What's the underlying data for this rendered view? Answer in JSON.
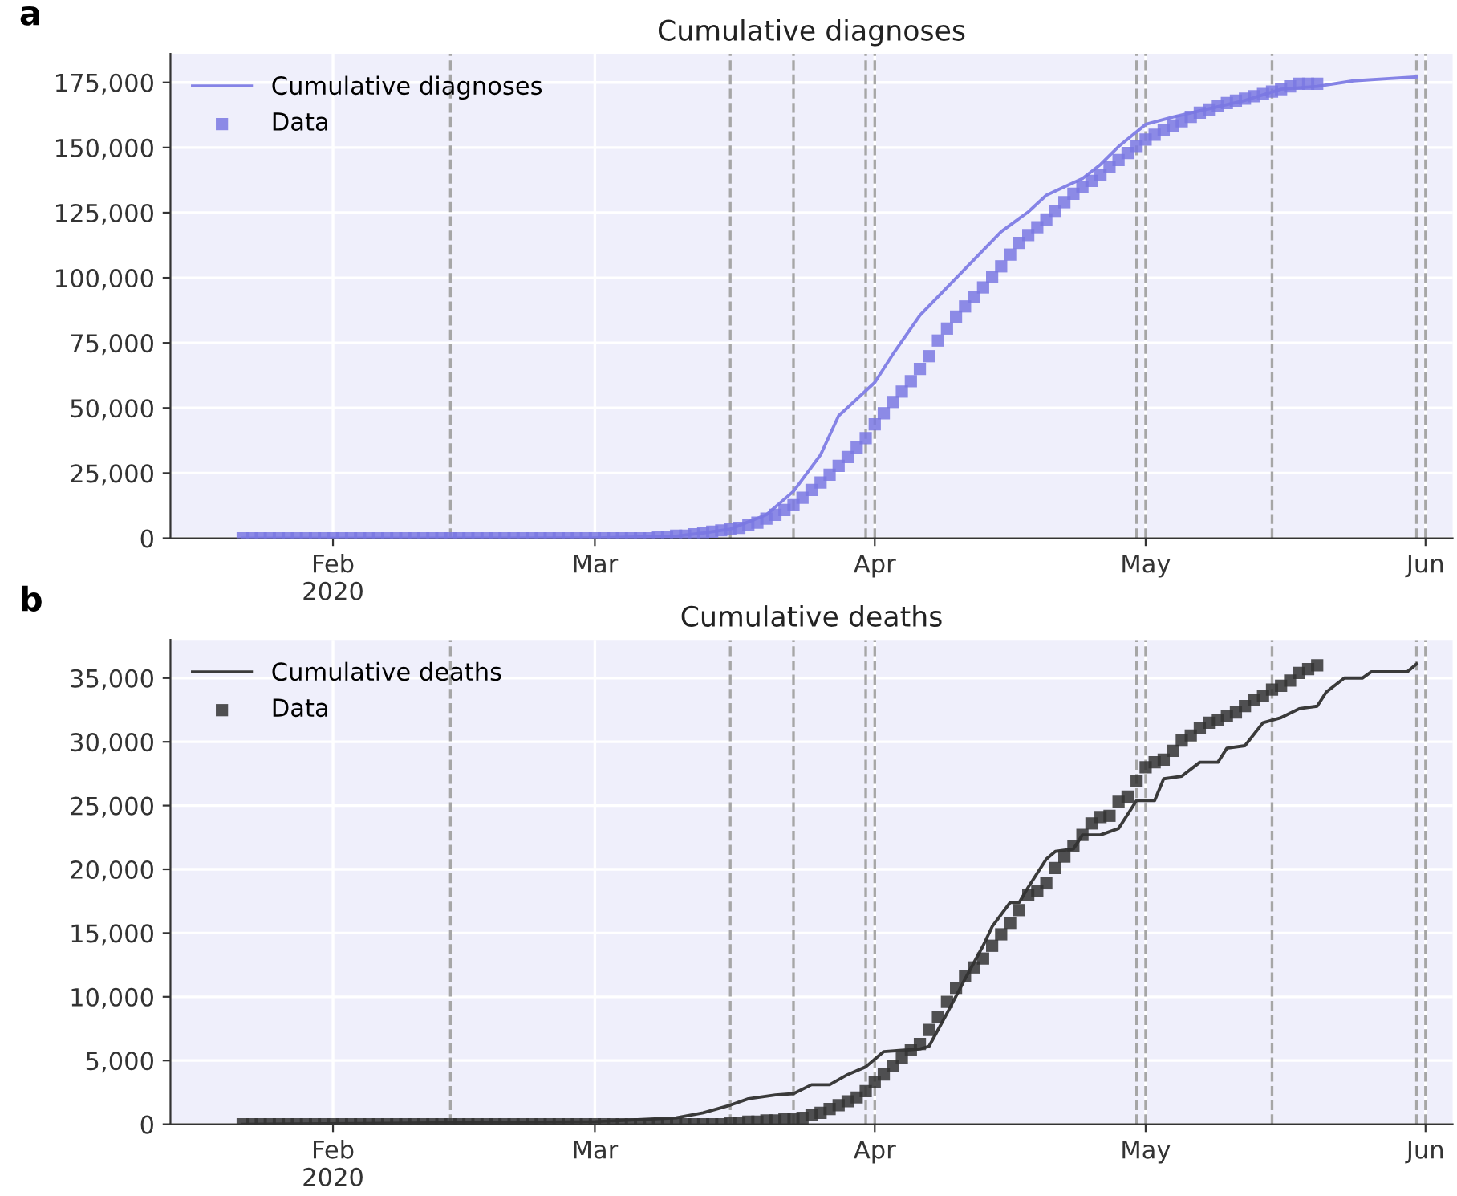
{
  "chart_data": [
    {
      "type": "line",
      "title": "Cumulative diagnoses",
      "annotations": [
        "a"
      ],
      "x": [
        "2020-01-22",
        "2020-01-23",
        "2020-01-24",
        "2020-01-25",
        "2020-01-26",
        "2020-01-27",
        "2020-01-28",
        "2020-01-29",
        "2020-01-30",
        "2020-01-31",
        "2020-02-01",
        "2020-02-02",
        "2020-02-03",
        "2020-02-04",
        "2020-02-05",
        "2020-02-06",
        "2020-02-07",
        "2020-02-08",
        "2020-02-09",
        "2020-02-10",
        "2020-02-11",
        "2020-02-12",
        "2020-02-13",
        "2020-02-14",
        "2020-02-15",
        "2020-02-16",
        "2020-02-17",
        "2020-02-18",
        "2020-02-19",
        "2020-02-20",
        "2020-02-21",
        "2020-02-22",
        "2020-02-23",
        "2020-02-24",
        "2020-02-25",
        "2020-02-26",
        "2020-02-27",
        "2020-02-28",
        "2020-02-29",
        "2020-03-01",
        "2020-03-02",
        "2020-03-03",
        "2020-03-04",
        "2020-03-05",
        "2020-03-06",
        "2020-03-07",
        "2020-03-08",
        "2020-03-09",
        "2020-03-10",
        "2020-03-11",
        "2020-03-12",
        "2020-03-13",
        "2020-03-14",
        "2020-03-15",
        "2020-03-16",
        "2020-03-17",
        "2020-03-18",
        "2020-03-19",
        "2020-03-20",
        "2020-03-21",
        "2020-03-22",
        "2020-03-23",
        "2020-03-24",
        "2020-03-25",
        "2020-03-26",
        "2020-03-27",
        "2020-03-28",
        "2020-03-29",
        "2020-03-30",
        "2020-03-31",
        "2020-04-01",
        "2020-04-02",
        "2020-04-03",
        "2020-04-04",
        "2020-04-05",
        "2020-04-06",
        "2020-04-07",
        "2020-04-08",
        "2020-04-09",
        "2020-04-10",
        "2020-04-11",
        "2020-04-12",
        "2020-04-13",
        "2020-04-14",
        "2020-04-15",
        "2020-04-16",
        "2020-04-17",
        "2020-04-18",
        "2020-04-19",
        "2020-04-20",
        "2020-04-21",
        "2020-04-22",
        "2020-04-23",
        "2020-04-24",
        "2020-04-25",
        "2020-04-26",
        "2020-04-27",
        "2020-04-28",
        "2020-04-29",
        "2020-04-30",
        "2020-05-01",
        "2020-05-02",
        "2020-05-03",
        "2020-05-04",
        "2020-05-05",
        "2020-05-06",
        "2020-05-07",
        "2020-05-08",
        "2020-05-09",
        "2020-05-10",
        "2020-05-11",
        "2020-05-12",
        "2020-05-13",
        "2020-05-14",
        "2020-05-15",
        "2020-05-16",
        "2020-05-17",
        "2020-05-18",
        "2020-05-19",
        "2020-05-20"
      ],
      "series": [
        {
          "name": "Cumulative diagnoses",
          "color": "#8583e6",
          "x": [
            "2020-01-22",
            "2020-03-01",
            "2020-03-10",
            "2020-03-13",
            "2020-03-16",
            "2020-03-20",
            "2020-03-23",
            "2020-03-26",
            "2020-03-28",
            "2020-04-01",
            "2020-04-03",
            "2020-04-06",
            "2020-04-09",
            "2020-04-12",
            "2020-04-15",
            "2020-04-18",
            "2020-04-20",
            "2020-04-22",
            "2020-04-24",
            "2020-04-26",
            "2020-04-28",
            "2020-05-01",
            "2020-05-04",
            "2020-05-08",
            "2020-05-12",
            "2020-05-16",
            "2020-05-20",
            "2020-05-24",
            "2020-05-28",
            "2020-05-31"
          ],
          "values": [
            0,
            100,
            800,
            2000,
            3500,
            9000,
            18000,
            32000,
            47000,
            59800,
            70600,
            85600,
            96300,
            107000,
            117700,
            125300,
            131700,
            134900,
            138100,
            143500,
            150400,
            158900,
            161700,
            164900,
            168100,
            172400,
            173500,
            175600,
            176500,
            177100
          ]
        },
        {
          "name": "Data",
          "type": "scatter",
          "marker": "square",
          "color": "#7a78e2",
          "values": [
            0,
            0,
            0,
            0,
            0,
            0,
            0,
            0,
            0,
            0,
            0,
            0,
            0,
            0,
            0,
            0,
            0,
            0,
            0,
            0,
            0,
            0,
            0,
            0,
            0,
            0,
            0,
            0,
            0,
            0,
            0,
            0,
            0,
            0,
            0,
            0,
            0,
            0,
            0,
            0,
            0,
            0,
            0,
            0,
            0,
            0,
            500,
            500,
            1000,
            1000,
            1500,
            2000,
            2500,
            3000,
            3500,
            4000,
            5000,
            6000,
            7500,
            9000,
            10800,
            12700,
            15500,
            18500,
            21400,
            24400,
            27800,
            31200,
            34800,
            38400,
            43700,
            48000,
            52300,
            56300,
            60300,
            65000,
            69900,
            75900,
            80500,
            85100,
            89000,
            92700,
            96300,
            100400,
            104400,
            108900,
            113400,
            116400,
            119400,
            122400,
            125700,
            129000,
            132300,
            134800,
            137200,
            139600,
            142400,
            145200,
            147900,
            150600,
            153100,
            154900,
            156700,
            158500,
            160100,
            161800,
            163400,
            164600,
            165900,
            167100,
            168000,
            168800,
            169700,
            170600,
            171500,
            172400,
            173500,
            174500,
            174500,
            174500
          ]
        }
      ],
      "xlim": [
        "2020-01-14",
        "2020-06-04"
      ],
      "xticks": [
        {
          "value": "2020-02-01",
          "label": "Feb\n2020"
        },
        {
          "value": "2020-03-01",
          "label": "Mar"
        },
        {
          "value": "2020-04-01",
          "label": "Apr"
        },
        {
          "value": "2020-05-01",
          "label": "May"
        },
        {
          "value": "2020-06-01",
          "label": "Jun"
        }
      ],
      "ylim": [
        0,
        186000
      ],
      "yticks": [
        0,
        {
          "value": 25000,
          "label": "25,000"
        },
        {
          "value": 50000,
          "label": "50,000"
        },
        {
          "value": 75000,
          "label": "75,000"
        },
        {
          "value": 100000,
          "label": "100,000"
        },
        {
          "value": 125000,
          "label": "125,000"
        },
        {
          "value": 150000,
          "label": "150,000"
        },
        {
          "value": 175000,
          "label": "175,000"
        }
      ],
      "grid": true,
      "legend": "top left",
      "line_style": "solid",
      "ref_lines": [
        {
          "axis": "x",
          "value": "2020-02-14",
          "color": "#a6a6a6",
          "line_style": "dashed"
        },
        {
          "axis": "x",
          "value": "2020-03-16",
          "color": "#a6a6a6",
          "line_style": "dashed"
        },
        {
          "axis": "x",
          "value": "2020-03-23",
          "color": "#a6a6a6",
          "line_style": "dashed"
        },
        {
          "axis": "x",
          "value": "2020-03-31",
          "color": "#a6a6a6",
          "line_style": "dashed"
        },
        {
          "axis": "x",
          "value": "2020-04-01",
          "color": "#a6a6a6",
          "line_style": "dashed"
        },
        {
          "axis": "x",
          "value": "2020-04-30",
          "color": "#a6a6a6",
          "line_style": "dashed"
        },
        {
          "axis": "x",
          "value": "2020-05-01",
          "color": "#a6a6a6",
          "line_style": "dashed"
        },
        {
          "axis": "x",
          "value": "2020-05-15",
          "color": "#a6a6a6",
          "line_style": "dashed"
        },
        {
          "axis": "x",
          "value": "2020-05-31",
          "color": "#a6a6a6",
          "line_style": "dashed"
        },
        {
          "axis": "x",
          "value": "2020-06-01",
          "color": "#a6a6a6",
          "line_style": "dashed"
        }
      ]
    },
    {
      "type": "line",
      "title": "Cumulative deaths",
      "annotations": [
        "b"
      ],
      "x": [
        "2020-01-22",
        "2020-01-23",
        "2020-01-24",
        "2020-01-25",
        "2020-01-26",
        "2020-01-27",
        "2020-01-28",
        "2020-01-29",
        "2020-01-30",
        "2020-01-31",
        "2020-02-01",
        "2020-02-02",
        "2020-02-03",
        "2020-02-04",
        "2020-02-05",
        "2020-02-06",
        "2020-02-07",
        "2020-02-08",
        "2020-02-09",
        "2020-02-10",
        "2020-02-11",
        "2020-02-12",
        "2020-02-13",
        "2020-02-14",
        "2020-02-15",
        "2020-02-16",
        "2020-02-17",
        "2020-02-18",
        "2020-02-19",
        "2020-02-20",
        "2020-02-21",
        "2020-02-22",
        "2020-02-23",
        "2020-02-24",
        "2020-02-25",
        "2020-02-26",
        "2020-02-27",
        "2020-02-28",
        "2020-02-29",
        "2020-03-01",
        "2020-03-02",
        "2020-03-03",
        "2020-03-04",
        "2020-03-05",
        "2020-03-06",
        "2020-03-07",
        "2020-03-08",
        "2020-03-09",
        "2020-03-10",
        "2020-03-11",
        "2020-03-12",
        "2020-03-13",
        "2020-03-14",
        "2020-03-15",
        "2020-03-16",
        "2020-03-17",
        "2020-03-18",
        "2020-03-19",
        "2020-03-20",
        "2020-03-21",
        "2020-03-22",
        "2020-03-23",
        "2020-03-24",
        "2020-03-25",
        "2020-03-26",
        "2020-03-27",
        "2020-03-28",
        "2020-03-29",
        "2020-03-30",
        "2020-03-31",
        "2020-04-01",
        "2020-04-02",
        "2020-04-03",
        "2020-04-04",
        "2020-04-05",
        "2020-04-06",
        "2020-04-07",
        "2020-04-08",
        "2020-04-09",
        "2020-04-10",
        "2020-04-11",
        "2020-04-12",
        "2020-04-13",
        "2020-04-14",
        "2020-04-15",
        "2020-04-16",
        "2020-04-17",
        "2020-04-18",
        "2020-04-19",
        "2020-04-20",
        "2020-04-21",
        "2020-04-22",
        "2020-04-23",
        "2020-04-24",
        "2020-04-25",
        "2020-04-26",
        "2020-04-27",
        "2020-04-28",
        "2020-04-29",
        "2020-04-30",
        "2020-05-01",
        "2020-05-02",
        "2020-05-03",
        "2020-05-04",
        "2020-05-05",
        "2020-05-06",
        "2020-05-07",
        "2020-05-08",
        "2020-05-09",
        "2020-05-10",
        "2020-05-11",
        "2020-05-12",
        "2020-05-13",
        "2020-05-14",
        "2020-05-15",
        "2020-05-16",
        "2020-05-17",
        "2020-05-18",
        "2020-05-19",
        "2020-05-20"
      ],
      "series": [
        {
          "name": "Cumulative deaths",
          "color": "#3a3a3a",
          "x": [
            "2020-01-22",
            "2020-03-01",
            "2020-03-10",
            "2020-03-13",
            "2020-03-16",
            "2020-03-18",
            "2020-03-21",
            "2020-03-23",
            "2020-03-25",
            "2020-03-27",
            "2020-03-29",
            "2020-03-31",
            "2020-04-02",
            "2020-04-04",
            "2020-04-06",
            "2020-04-07",
            "2020-04-09",
            "2020-04-11",
            "2020-04-13",
            "2020-04-14",
            "2020-04-16",
            "2020-04-17",
            "2020-04-18",
            "2020-04-20",
            "2020-04-21",
            "2020-04-23",
            "2020-04-24",
            "2020-04-26",
            "2020-04-28",
            "2020-04-30",
            "2020-05-02",
            "2020-05-03",
            "2020-05-05",
            "2020-05-07",
            "2020-05-09",
            "2020-05-10",
            "2020-05-12",
            "2020-05-14",
            "2020-05-16",
            "2020-05-18",
            "2020-05-20",
            "2020-05-21",
            "2020-05-23",
            "2020-05-25",
            "2020-05-26",
            "2020-05-30",
            "2020-05-31"
          ],
          "values": [
            0,
            200,
            500,
            900,
            1500,
            2000,
            2300,
            2400,
            3100,
            3100,
            3900,
            4500,
            5700,
            5800,
            5900,
            6100,
            8700,
            11400,
            14000,
            15500,
            17400,
            17400,
            18600,
            20800,
            21400,
            21600,
            22700,
            22700,
            23200,
            25400,
            25400,
            27100,
            27300,
            28400,
            28400,
            29500,
            29700,
            31500,
            31900,
            32600,
            32800,
            33900,
            35000,
            35000,
            35500,
            35500,
            36100
          ]
        },
        {
          "name": "Data",
          "type": "scatter",
          "marker": "square",
          "color": "#333333",
          "values": [
            0,
            0,
            0,
            0,
            0,
            0,
            0,
            0,
            0,
            0,
            0,
            0,
            0,
            0,
            0,
            0,
            0,
            0,
            0,
            0,
            0,
            0,
            0,
            0,
            0,
            0,
            0,
            0,
            0,
            0,
            0,
            0,
            0,
            0,
            0,
            0,
            0,
            0,
            0,
            0,
            0,
            0,
            0,
            0,
            0,
            0,
            0,
            0,
            0,
            0,
            0,
            0,
            0,
            0,
            100,
            100,
            200,
            200,
            300,
            300,
            400,
            400,
            500,
            700,
            900,
            1200,
            1500,
            1800,
            2100,
            2600,
            3300,
            3900,
            4600,
            5200,
            5800,
            6300,
            7400,
            8400,
            9600,
            10700,
            11600,
            12300,
            13000,
            14000,
            14900,
            15800,
            16800,
            18000,
            18300,
            18900,
            20100,
            21000,
            21800,
            22700,
            23600,
            24100,
            24200,
            25300,
            25700,
            26900,
            28000,
            28400,
            28600,
            29300,
            30100,
            30500,
            31100,
            31500,
            31700,
            32000,
            32300,
            32800,
            33300,
            33600,
            34100,
            34400,
            34800,
            35400,
            35700,
            36000
          ]
        }
      ],
      "xlim": [
        "2020-01-14",
        "2020-06-04"
      ],
      "xticks": [
        {
          "value": "2020-02-01",
          "label": "Feb\n2020"
        },
        {
          "value": "2020-03-01",
          "label": "Mar"
        },
        {
          "value": "2020-04-01",
          "label": "Apr"
        },
        {
          "value": "2020-05-01",
          "label": "May"
        },
        {
          "value": "2020-06-01",
          "label": "Jun"
        }
      ],
      "ylim": [
        0,
        38000
      ],
      "yticks": [
        0,
        {
          "value": 5000,
          "label": "5,000"
        },
        {
          "value": 10000,
          "label": "10,000"
        },
        {
          "value": 15000,
          "label": "15,000"
        },
        {
          "value": 20000,
          "label": "20,000"
        },
        {
          "value": 25000,
          "label": "25,000"
        },
        {
          "value": 30000,
          "label": "30,000"
        },
        {
          "value": 35000,
          "label": "35,000"
        }
      ],
      "grid": true,
      "legend": "top left",
      "line_style": "solid",
      "ref_lines": [
        {
          "axis": "x",
          "value": "2020-02-14",
          "color": "#a6a6a6",
          "line_style": "dashed"
        },
        {
          "axis": "x",
          "value": "2020-03-16",
          "color": "#a6a6a6",
          "line_style": "dashed"
        },
        {
          "axis": "x",
          "value": "2020-03-23",
          "color": "#a6a6a6",
          "line_style": "dashed"
        },
        {
          "axis": "x",
          "value": "2020-03-31",
          "color": "#a6a6a6",
          "line_style": "dashed"
        },
        {
          "axis": "x",
          "value": "2020-04-01",
          "color": "#a6a6a6",
          "line_style": "dashed"
        },
        {
          "axis": "x",
          "value": "2020-04-30",
          "color": "#a6a6a6",
          "line_style": "dashed"
        },
        {
          "axis": "x",
          "value": "2020-05-01",
          "color": "#a6a6a6",
          "line_style": "dashed"
        },
        {
          "axis": "x",
          "value": "2020-05-15",
          "color": "#a6a6a6",
          "line_style": "dashed"
        },
        {
          "axis": "x",
          "value": "2020-05-31",
          "color": "#a6a6a6",
          "line_style": "dashed"
        },
        {
          "axis": "x",
          "value": "2020-06-01",
          "color": "#a6a6a6",
          "line_style": "dashed"
        }
      ]
    }
  ]
}
